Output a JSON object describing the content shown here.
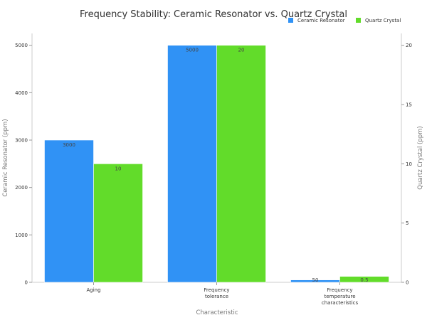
{
  "chart_data": {
    "type": "bar",
    "title": "Frequency Stability: Ceramic Resonator vs. Quartz Crystal",
    "xlabel": "Characteristic",
    "categories": [
      [
        "Aging"
      ],
      [
        "Frequency",
        "tolerance"
      ],
      [
        "Frequency",
        "temperature",
        "characteristics"
      ]
    ],
    "series": [
      {
        "name": "Ceramic Resonator",
        "axis": "left",
        "color": "#3092f5",
        "values": [
          3000,
          5000,
          50
        ],
        "labels": [
          "3000",
          "5000",
          "50"
        ]
      },
      {
        "name": "Quartz Crystal",
        "axis": "right",
        "color": "#62dc2a",
        "values": [
          10,
          20,
          0.5
        ],
        "labels": [
          "10",
          "20",
          "0.5"
        ]
      }
    ],
    "y_left": {
      "label": "Ceramic Resonator (ppm)",
      "range": [
        0,
        5250
      ],
      "ticks": [
        0,
        1000,
        2000,
        3000,
        4000,
        5000
      ]
    },
    "y_right": {
      "label": "Quartz Crystal (ppm)",
      "range": [
        0,
        21
      ],
      "ticks": [
        0,
        5,
        10,
        15,
        20
      ]
    },
    "grid": false,
    "legend": "top-right"
  }
}
